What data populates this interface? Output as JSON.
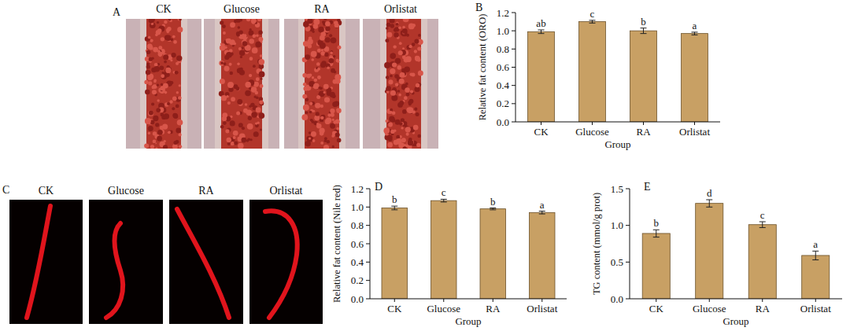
{
  "chart_data": [
    {
      "type": "bar",
      "panel": "B",
      "categories": [
        "CK",
        "Glucose",
        "RA",
        "Orlistat"
      ],
      "values": [
        0.99,
        1.1,
        1.0,
        0.97
      ],
      "errors": [
        0.02,
        0.015,
        0.03,
        0.015
      ],
      "significance": [
        "ab",
        "c",
        "b",
        "a"
      ],
      "color": "#c8a064",
      "x_label": "Group",
      "y_label": "Relative fat content (ORO)",
      "ylim": [
        0,
        1.2
      ],
      "yticks": [
        {
          "value": 0,
          "label": "0.0"
        },
        0.2,
        0.4,
        0.6,
        0.8,
        {
          "value": 1,
          "label": "1.0"
        },
        1.2
      ]
    },
    {
      "type": "bar",
      "panel": "D",
      "categories": [
        "CK",
        "Glucose",
        "RA",
        "Orlistat"
      ],
      "values": [
        0.99,
        1.07,
        0.98,
        0.94
      ],
      "errors": [
        0.02,
        0.015,
        0.01,
        0.015
      ],
      "significance": [
        "b",
        "c",
        "b",
        "a"
      ],
      "color": "#c8a064",
      "x_label": "Group",
      "y_label": "Relative fat content (Nile red)",
      "ylim": [
        0,
        1.2
      ],
      "yticks": [
        {
          "value": 0,
          "label": "0.0"
        },
        0.2,
        0.4,
        0.6,
        0.8,
        {
          "value": 1,
          "label": "1.0"
        },
        1.2
      ]
    },
    {
      "type": "bar",
      "panel": "E",
      "categories": [
        "CK",
        "Glucose",
        "RA",
        "Orlistat"
      ],
      "values": [
        0.89,
        1.3,
        1.01,
        0.59
      ],
      "errors": [
        0.05,
        0.05,
        0.04,
        0.06
      ],
      "significance": [
        "b",
        "d",
        "c",
        "a"
      ],
      "color": "#c8a064",
      "x_label": "Group",
      "y_label": "TG content (mmol/g prot)",
      "ylim": [
        0,
        1.5
      ],
      "yticks": [
        {
          "value": 0,
          "label": "0.0"
        },
        0.5,
        {
          "value": 1,
          "label": "1.0"
        },
        1.5
      ]
    }
  ],
  "image_panels": [
    {
      "panel": "A",
      "labels": [
        "CK",
        "Glucose",
        "RA",
        "Orlistat"
      ]
    },
    {
      "panel": "C",
      "labels": [
        "CK",
        "Glucose",
        "RA",
        "Orlistat"
      ]
    }
  ]
}
